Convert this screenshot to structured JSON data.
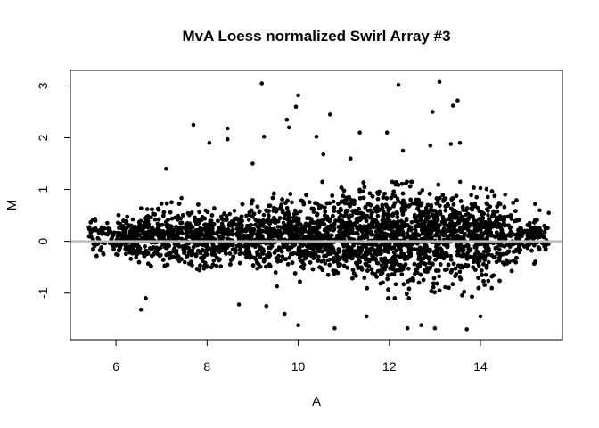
{
  "chart_data": {
    "type": "scatter",
    "title": "MvA Loess normalized Swirl Array #3",
    "xlabel": "A",
    "ylabel": "M",
    "xlim": [
      5.0,
      15.8
    ],
    "ylim": [
      -1.9,
      3.3
    ],
    "xticks": [
      6,
      8,
      10,
      12,
      14
    ],
    "yticks": [
      -1,
      0,
      1,
      2,
      3
    ],
    "grid": false,
    "legend": "none",
    "reference_line": {
      "y": 0,
      "color": "#bebebe"
    },
    "point_color": "#000000",
    "bulk_region": {
      "x_range": [
        5.4,
        15.5
      ],
      "y_spread_core": 0.35,
      "y_spread_max": 1.0,
      "estimated_points": 8000
    },
    "outliers": [
      {
        "x": 9.2,
        "y": 3.05
      },
      {
        "x": 10.0,
        "y": 2.82
      },
      {
        "x": 9.95,
        "y": 2.6
      },
      {
        "x": 12.2,
        "y": 3.02
      },
      {
        "x": 13.1,
        "y": 3.08
      },
      {
        "x": 13.5,
        "y": 2.72
      },
      {
        "x": 13.4,
        "y": 2.62
      },
      {
        "x": 12.95,
        "y": 2.5
      },
      {
        "x": 10.7,
        "y": 2.45
      },
      {
        "x": 7.7,
        "y": 2.25
      },
      {
        "x": 8.45,
        "y": 2.18
      },
      {
        "x": 8.45,
        "y": 1.97
      },
      {
        "x": 9.25,
        "y": 2.02
      },
      {
        "x": 9.75,
        "y": 2.35
      },
      {
        "x": 9.8,
        "y": 2.2
      },
      {
        "x": 10.4,
        "y": 2.02
      },
      {
        "x": 11.35,
        "y": 2.1
      },
      {
        "x": 11.95,
        "y": 2.1
      },
      {
        "x": 13.35,
        "y": 1.88
      },
      {
        "x": 12.9,
        "y": 1.85
      },
      {
        "x": 13.55,
        "y": 1.9
      },
      {
        "x": 12.3,
        "y": 1.75
      },
      {
        "x": 8.05,
        "y": 1.9
      },
      {
        "x": 7.1,
        "y": 1.4
      },
      {
        "x": 9.0,
        "y": 1.5
      },
      {
        "x": 10.55,
        "y": 1.68
      },
      {
        "x": 11.15,
        "y": 1.6
      },
      {
        "x": 6.55,
        "y": -1.32
      },
      {
        "x": 10.0,
        "y": -1.62
      },
      {
        "x": 10.8,
        "y": -1.68
      },
      {
        "x": 12.4,
        "y": -1.68
      },
      {
        "x": 13.0,
        "y": -1.68
      },
      {
        "x": 13.7,
        "y": -1.7
      },
      {
        "x": 12.7,
        "y": -1.62
      },
      {
        "x": 9.7,
        "y": -1.4
      },
      {
        "x": 11.5,
        "y": -1.45
      },
      {
        "x": 14.0,
        "y": -1.45
      },
      {
        "x": 8.7,
        "y": -1.22
      },
      {
        "x": 9.3,
        "y": -1.25
      },
      {
        "x": 15.3,
        "y": 0.6
      },
      {
        "x": 15.5,
        "y": 0.55
      },
      {
        "x": 15.2,
        "y": 0.72
      },
      {
        "x": 15.4,
        "y": 0.3
      },
      {
        "x": 5.5,
        "y": -0.05
      },
      {
        "x": 5.7,
        "y": 0.2
      }
    ]
  }
}
